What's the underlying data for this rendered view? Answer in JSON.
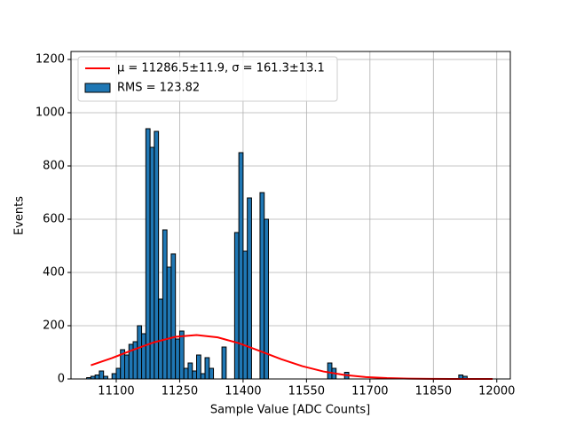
{
  "chart_data": {
    "type": "histogram",
    "xlabel": "Sample Value [ADC Counts]",
    "ylabel": "Events",
    "xlim": [
      10993,
      12032
    ],
    "ylim": [
      0,
      1230
    ],
    "xticks": [
      11100,
      11250,
      11400,
      11550,
      11700,
      11850,
      12000
    ],
    "yticks": [
      0,
      200,
      400,
      600,
      800,
      1000,
      1200
    ],
    "grid": true,
    "legend": "upper left",
    "series": [
      {
        "name": "μ = 11286.5±11.9, σ = 161.3±13.1",
        "type": "line",
        "color": "#ff0000",
        "x": [
          11040,
          11090,
          11140,
          11190,
          11240,
          11290,
          11340,
          11390,
          11440,
          11490,
          11540,
          11590,
          11640,
          11690,
          11740,
          11790,
          11840,
          11890,
          11940,
          11990
        ],
        "values": [
          51.3,
          78.6,
          109.3,
          138.0,
          158.3,
          165.0,
          156.2,
          134.3,
          104.9,
          74.4,
          48.0,
          28.1,
          15.0,
          7.2,
          3.2,
          1.3,
          0.5,
          0.2,
          0.1,
          0.0
        ]
      },
      {
        "name": "RMS = 123.82",
        "type": "hist",
        "color": "#1f77b4",
        "edgecolor": "#000000",
        "bins": [
          11030,
          11040,
          11050,
          11060,
          11070,
          11080,
          11090,
          11100,
          11110,
          11120,
          11130,
          11140,
          11150,
          11160,
          11170,
          11180,
          11190,
          11200,
          11210,
          11220,
          11230,
          11240,
          11250,
          11260,
          11270,
          11280,
          11290,
          11300,
          11310,
          11320,
          11330,
          11340,
          11350,
          11360,
          11370,
          11380,
          11390,
          11400,
          11410,
          11420,
          11430,
          11440,
          11450,
          11460,
          11470,
          11480,
          11490,
          11500,
          11510,
          11520,
          11530,
          11540,
          11550,
          11560,
          11570,
          11580,
          11590,
          11600,
          11610,
          11620,
          11630,
          11640,
          11650,
          11660,
          11670,
          11680,
          11690,
          11700,
          11710,
          11720,
          11730,
          11740,
          11750,
          11760,
          11770,
          11780,
          11790,
          11800,
          11810,
          11820,
          11830,
          11840,
          11850,
          11860,
          11870,
          11880,
          11890,
          11900,
          11910,
          11920,
          11930,
          11940,
          11950,
          11960,
          11970,
          11980,
          11990
        ],
        "values": [
          5,
          10,
          15,
          30,
          10,
          0,
          20,
          40,
          110,
          90,
          130,
          140,
          200,
          170,
          940,
          870,
          930,
          300,
          560,
          420,
          470,
          150,
          180,
          40,
          60,
          30,
          90,
          20,
          80,
          40,
          0,
          0,
          120,
          0,
          0,
          550,
          850,
          480,
          680,
          0,
          0,
          700,
          600,
          0,
          0,
          0,
          0,
          0,
          0,
          0,
          0,
          0,
          0,
          0,
          0,
          0,
          0,
          60,
          40,
          0,
          0,
          25,
          0,
          0,
          0,
          0,
          0,
          0,
          0,
          0,
          0,
          0,
          0,
          0,
          0,
          0,
          0,
          0,
          0,
          0,
          0,
          0,
          0,
          0,
          0,
          0,
          0,
          0,
          15,
          10,
          0,
          0,
          0,
          0,
          0,
          0
        ]
      }
    ]
  }
}
